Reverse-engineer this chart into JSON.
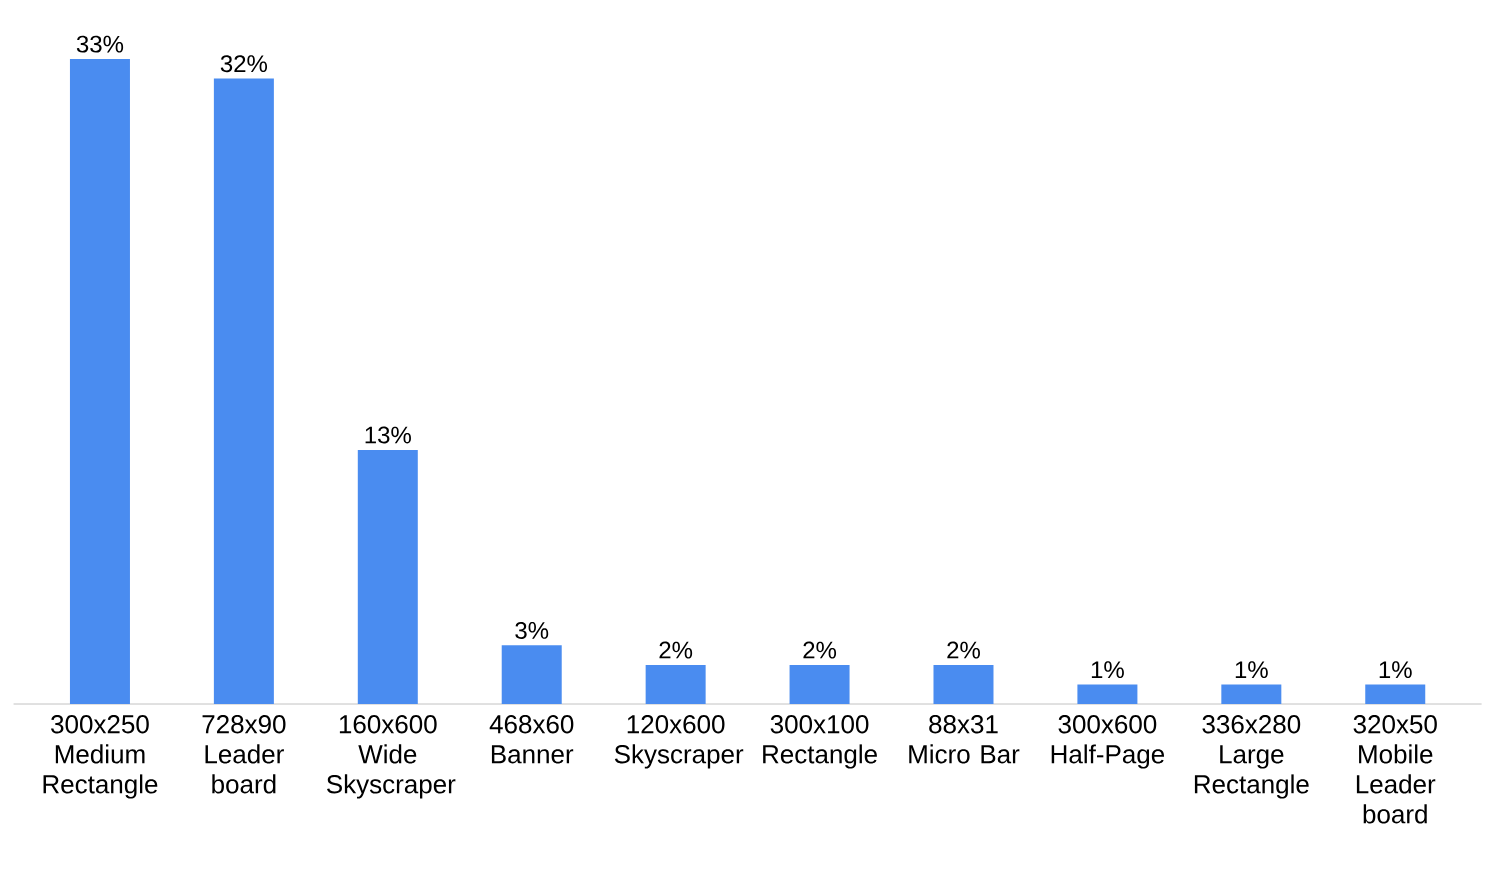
{
  "chart_data": {
    "type": "bar",
    "categories": [
      "300x250 Medium Rectangle",
      "728x90 Leader board",
      "160x600 Wide Skyscraper",
      "468x60 Banner",
      "120x600 Skyscraper",
      "300x100 Rectangle",
      "88x31 Micro Bar",
      "300x600 Half-Page",
      "336x280 Large Rectangle",
      "320x50 Mobile Leader board"
    ],
    "values": [
      33,
      32,
      13,
      3,
      2,
      2,
      2,
      1,
      1,
      1
    ],
    "value_labels": [
      "33%",
      "32%",
      "13%",
      "3%",
      "2%",
      "2%",
      "2%",
      "1%",
      "1%",
      "1%"
    ],
    "color": "#4a8cf0"
  }
}
